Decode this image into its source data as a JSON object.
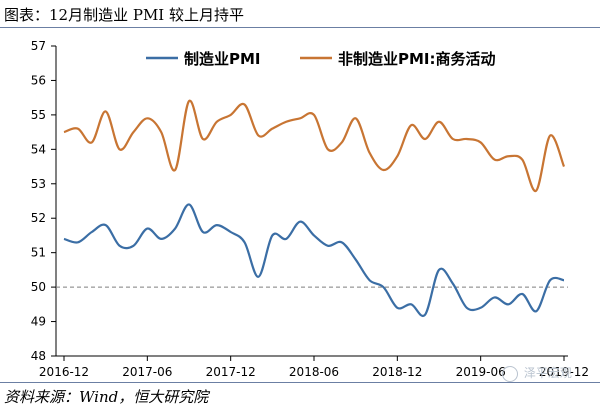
{
  "header": {
    "title": "图表：12月制造业 PMI 较上月持平"
  },
  "footer": {
    "source": "资料来源：Wind，恒大研究院"
  },
  "watermark": {
    "text": "泽平宏观",
    "icon": "wechat-icon"
  },
  "chart_data": {
    "type": "line",
    "title": "",
    "xlabel": "",
    "ylabel": "",
    "ylim": [
      48,
      57
    ],
    "yticks": [
      48,
      49,
      50,
      51,
      52,
      53,
      54,
      55,
      56,
      57
    ],
    "x_tick_labels": [
      "2016-12",
      "2017-06",
      "2017-12",
      "2018-06",
      "2018-12",
      "2019-06",
      "2019-12"
    ],
    "x": [
      "2016-12",
      "2017-01",
      "2017-02",
      "2017-03",
      "2017-04",
      "2017-05",
      "2017-06",
      "2017-07",
      "2017-08",
      "2017-09",
      "2017-10",
      "2017-11",
      "2017-12",
      "2018-01",
      "2018-02",
      "2018-03",
      "2018-04",
      "2018-05",
      "2018-06",
      "2018-07",
      "2018-08",
      "2018-09",
      "2018-10",
      "2018-11",
      "2018-12",
      "2019-01",
      "2019-02",
      "2019-03",
      "2019-04",
      "2019-05",
      "2019-06",
      "2019-07",
      "2019-08",
      "2019-09",
      "2019-10",
      "2019-11",
      "2019-12"
    ],
    "reference_line": {
      "y": 50,
      "style": "dashed"
    },
    "grid": false,
    "legend_position": "top",
    "series": [
      {
        "name": "制造业PMI",
        "color": "#3b6ea5",
        "values": [
          51.4,
          51.3,
          51.6,
          51.8,
          51.2,
          51.2,
          51.7,
          51.4,
          51.7,
          52.4,
          51.6,
          51.8,
          51.6,
          51.3,
          50.3,
          51.5,
          51.4,
          51.9,
          51.5,
          51.2,
          51.3,
          50.8,
          50.2,
          50.0,
          49.4,
          49.5,
          49.2,
          50.5,
          50.1,
          49.4,
          49.4,
          49.7,
          49.5,
          49.8,
          49.3,
          50.2,
          50.2
        ]
      },
      {
        "name": "非制造业PMI:商务活动",
        "color": "#c87533",
        "values": [
          54.5,
          54.6,
          54.2,
          55.1,
          54.0,
          54.5,
          54.9,
          54.5,
          53.4,
          55.4,
          54.3,
          54.8,
          55.0,
          55.3,
          54.4,
          54.6,
          54.8,
          54.9,
          55.0,
          54.0,
          54.2,
          54.9,
          53.9,
          53.4,
          53.8,
          54.7,
          54.3,
          54.8,
          54.3,
          54.3,
          54.2,
          53.7,
          53.8,
          53.7,
          52.8,
          54.4,
          53.5
        ]
      }
    ]
  }
}
